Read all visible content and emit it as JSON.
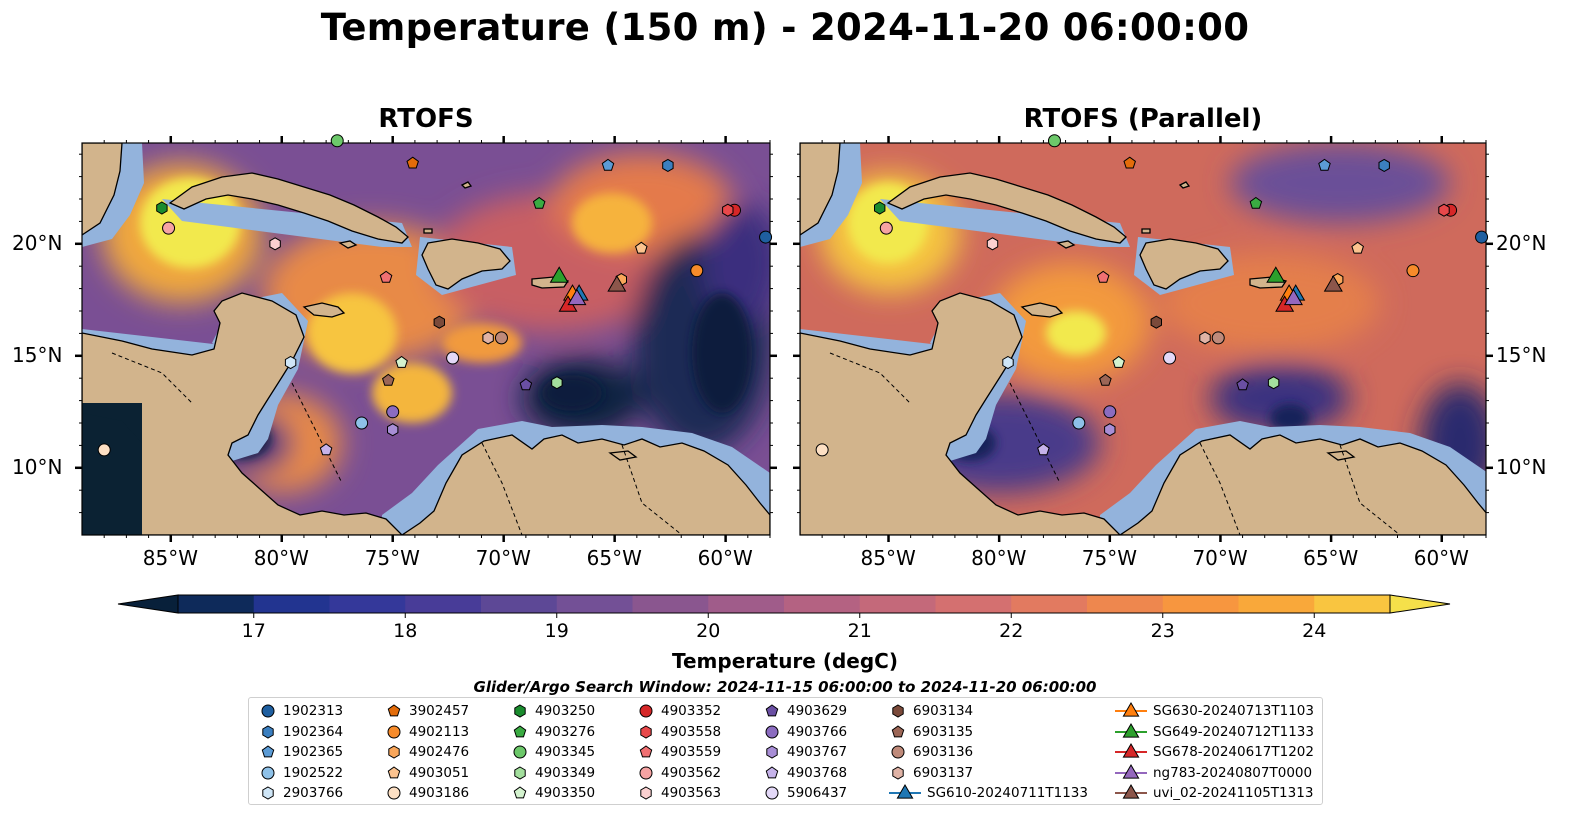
{
  "title": "Temperature (150 m) - 2024-11-20 06:00:00",
  "panels": [
    {
      "title": "RTOFS"
    },
    {
      "title": "RTOFS (Parallel)"
    }
  ],
  "map": {
    "lon_ticks": [
      "85°W",
      "80°W",
      "75°W",
      "70°W",
      "65°W",
      "60°W"
    ],
    "lat_ticks": [
      "20°N",
      "15°N",
      "10°N"
    ],
    "lon_values": [
      -85,
      -80,
      -75,
      -70,
      -65,
      -60
    ],
    "lat_values": [
      20,
      15,
      10
    ],
    "lon_range": [
      -89,
      -58
    ],
    "lat_range": [
      7,
      24.5
    ],
    "land_color": "#d2b48c",
    "shelf_color": "#93b3dc"
  },
  "colorbar": {
    "label": "Temperature (degC)",
    "ticks": [
      "17",
      "18",
      "19",
      "20",
      "21",
      "22",
      "23",
      "24"
    ],
    "range": [
      16.5,
      24.5
    ],
    "extend": "both"
  },
  "search_window": "Glider/Argo Search Window: 2024-11-15 06:00:00 to 2024-11-20 06:00:00",
  "legend": {
    "columns": [
      [
        {
          "label": "1902313",
          "marker": "circle",
          "color": "#1f5fa0"
        },
        {
          "label": "1902364",
          "marker": "hexagon",
          "color": "#3b7fc0"
        },
        {
          "label": "1902365",
          "marker": "pentagon",
          "color": "#5b9bd5"
        },
        {
          "label": "1902522",
          "marker": "circle",
          "color": "#8ec1e8"
        },
        {
          "label": "2903766",
          "marker": "hexagon",
          "color": "#cfe6f7"
        }
      ],
      [
        {
          "label": "3902457",
          "marker": "pentagon",
          "color": "#e36c0a"
        },
        {
          "label": "4902113",
          "marker": "circle",
          "color": "#f78b2a"
        },
        {
          "label": "4902476",
          "marker": "hexagon",
          "color": "#f9a65a"
        },
        {
          "label": "4903051",
          "marker": "pentagon",
          "color": "#fcc38f"
        },
        {
          "label": "4903186",
          "marker": "circle",
          "color": "#fde0c4"
        }
      ],
      [
        {
          "label": "4903250",
          "marker": "hexagon",
          "color": "#1a8c2e"
        },
        {
          "label": "4903276",
          "marker": "pentagon",
          "color": "#3aab42"
        },
        {
          "label": "4903345",
          "marker": "circle",
          "color": "#6cc86a"
        },
        {
          "label": "4903349",
          "marker": "hexagon",
          "color": "#a3df9d"
        },
        {
          "label": "4903350",
          "marker": "pentagon",
          "color": "#d4f3cf"
        }
      ],
      [
        {
          "label": "4903352",
          "marker": "circle",
          "color": "#d62728"
        },
        {
          "label": "4903558",
          "marker": "hexagon",
          "color": "#e8484a"
        },
        {
          "label": "4903559",
          "marker": "pentagon",
          "color": "#f07072"
        },
        {
          "label": "4903562",
          "marker": "circle",
          "color": "#f6a3a3"
        },
        {
          "label": "4903563",
          "marker": "hexagon",
          "color": "#fbd0d0"
        }
      ],
      [
        {
          "label": "4903629",
          "marker": "pentagon",
          "color": "#6a4fa3"
        },
        {
          "label": "4903766",
          "marker": "circle",
          "color": "#8b6cc0"
        },
        {
          "label": "4903767",
          "marker": "hexagon",
          "color": "#a88ed6"
        },
        {
          "label": "4903768",
          "marker": "pentagon",
          "color": "#c6b3ea"
        },
        {
          "label": "5906437",
          "marker": "circle",
          "color": "#e3d8f7"
        }
      ],
      [
        {
          "label": "6903134",
          "marker": "hexagon",
          "color": "#7b4a3a"
        },
        {
          "label": "6903135",
          "marker": "pentagon",
          "color": "#9c6656"
        },
        {
          "label": "6903136",
          "marker": "circle",
          "color": "#bf8a7a"
        },
        {
          "label": "6903137",
          "marker": "hexagon",
          "color": "#e0b3a6"
        },
        {
          "label": "SG610-20240711T1133",
          "marker": "triangle",
          "color": "#1f77b4"
        }
      ],
      [
        {
          "label": "SG630-20240713T1103",
          "marker": "triangle",
          "color": "#ff7f0e"
        },
        {
          "label": "SG649-20240712T1133",
          "marker": "triangle",
          "color": "#2ca02c"
        },
        {
          "label": "SG678-20240617T1202",
          "marker": "triangle",
          "color": "#d62728"
        },
        {
          "label": "ng783-20240807T0000",
          "marker": "triangle",
          "color": "#9467bd"
        },
        {
          "label": "uvi_02-20241105T1313",
          "marker": "triangle",
          "color": "#8c564b"
        }
      ]
    ]
  }
}
